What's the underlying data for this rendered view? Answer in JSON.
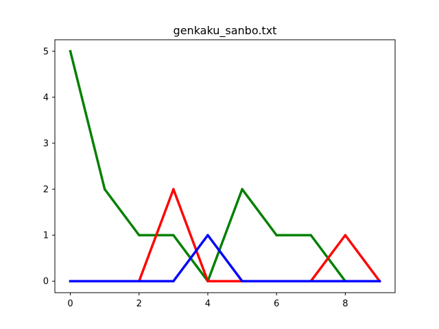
{
  "chart_data": {
    "type": "line",
    "title": "genkaku_sanbo.txt",
    "xlabel": "",
    "ylabel": "",
    "x": [
      0,
      1,
      2,
      3,
      4,
      5,
      6,
      7,
      8,
      9
    ],
    "xlim": [
      -0.45,
      9.45
    ],
    "ylim": [
      -0.25,
      5.25
    ],
    "xticks": [
      0,
      2,
      4,
      6,
      8
    ],
    "yticks": [
      0,
      1,
      2,
      3,
      4,
      5
    ],
    "grid": false,
    "legend": "none",
    "series": [
      {
        "color": "#008000",
        "values": [
          5,
          2,
          1,
          1,
          0,
          2,
          1,
          1,
          0,
          0
        ]
      },
      {
        "color": "#ff0000",
        "values": [
          0,
          0,
          0,
          2,
          0,
          0,
          0,
          0,
          1,
          0
        ]
      },
      {
        "color": "#0000ff",
        "values": [
          0,
          0,
          0,
          0,
          1,
          0,
          0,
          0,
          0,
          0
        ]
      }
    ]
  }
}
